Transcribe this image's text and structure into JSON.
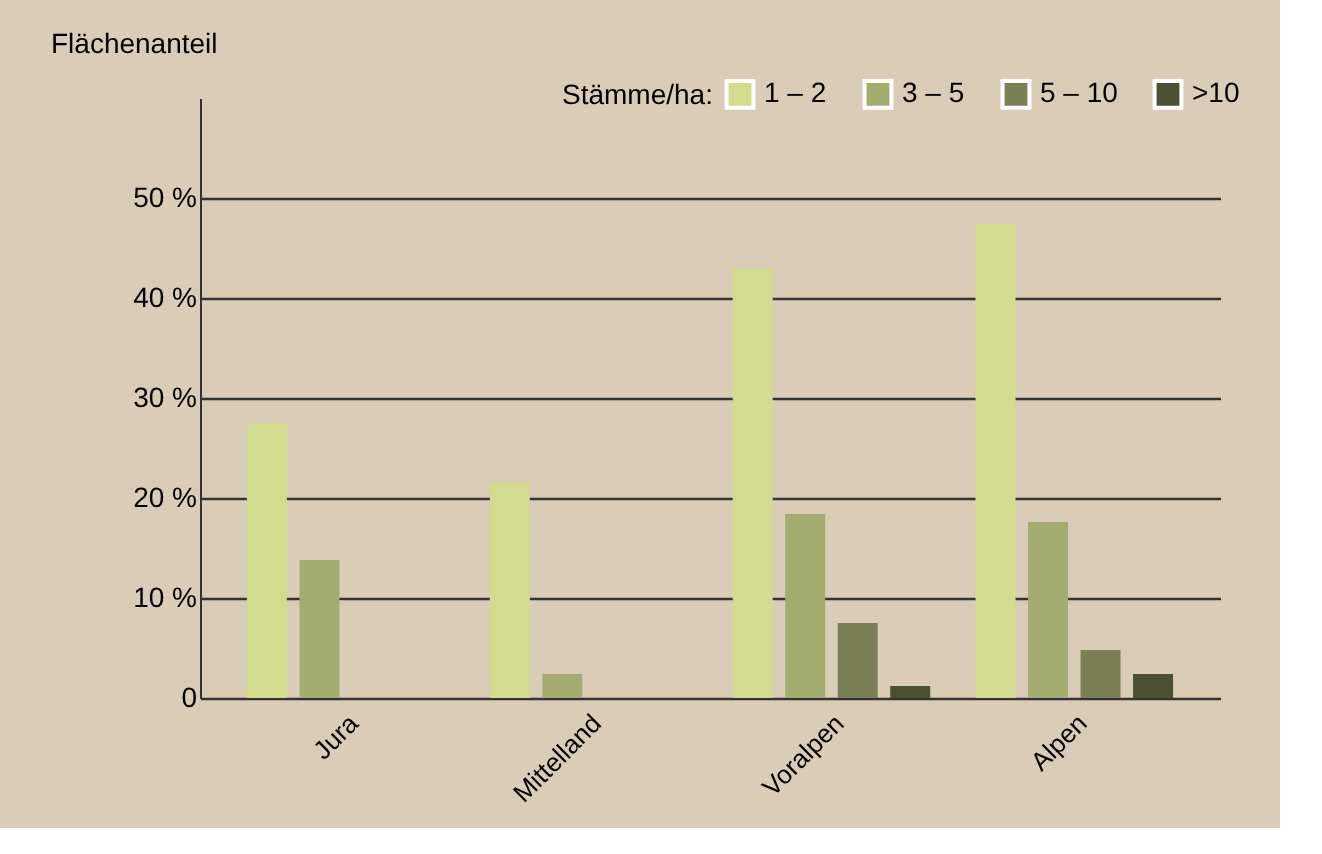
{
  "chart_data": {
    "type": "bar",
    "ylabel": "Flächenanteil",
    "legend_title": "Stämme/ha:",
    "categories": [
      "Jura",
      "Mittelland",
      "Voralpen",
      "Alpen"
    ],
    "series": [
      {
        "name": "1 – 2",
        "color": "#d2dc8c",
        "values": [
          27.5,
          21.5,
          43,
          47.4
        ]
      },
      {
        "name": "3 – 5",
        "color": "#a4ad70",
        "values": [
          13.8,
          2.4,
          18.4,
          17.6
        ]
      },
      {
        "name": "5 – 10",
        "color": "#7a7f56",
        "values": [
          0,
          0,
          7.5,
          4.8
        ]
      },
      {
        "name": ">10",
        "color": "#4b5035",
        "values": [
          0,
          0,
          1.2,
          2.4
        ]
      }
    ],
    "ylim": [
      0,
      60
    ],
    "yticks": [
      {
        "value": 0,
        "label": "0"
      },
      {
        "value": 10,
        "label": "10 %"
      },
      {
        "value": 20,
        "label": "20 %"
      },
      {
        "value": 30,
        "label": "30 %"
      },
      {
        "value": 40,
        "label": "40 %"
      },
      {
        "value": 50,
        "label": "50 %"
      }
    ],
    "grid": "y",
    "legend": "top right"
  }
}
